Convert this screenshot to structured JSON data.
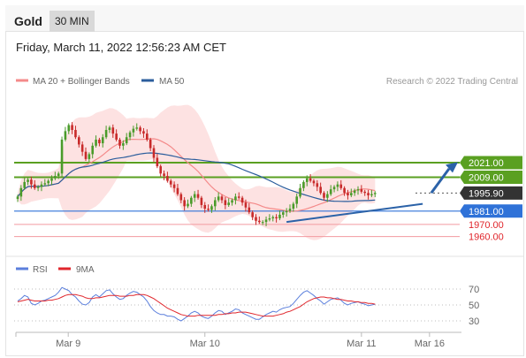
{
  "header": {
    "title": "Gold",
    "interval": "30 MIN"
  },
  "date_text": "Friday, March 11, 2022 12:56:23 AM CET",
  "colors": {
    "ma20": "#f48a8a",
    "ma50": "#2b5d9c",
    "band_fill": "#fde2e2",
    "green_level": "#5aa021",
    "blue_level": "#2f72d8",
    "red_level": "#e0262c",
    "candle_up": "#4a9b2a",
    "candle_down": "#c82a2a",
    "arrow": "#2b62a8",
    "rsi": "#5b7fdc",
    "rsi_ma": "#e0262c"
  },
  "chart_data": [
    {
      "type": "candlestick",
      "title": "",
      "legend": [
        {
          "name": "MA 20 + Bollinger Bands",
          "color": "#f48a8a"
        },
        {
          "name": "MA 50",
          "color": "#2b5d9c"
        }
      ],
      "legend_placement": "top-left",
      "credit": "Research © 2022 Trading Central",
      "ylim": [
        1950,
        2070
      ],
      "x_ticks": [
        {
          "label": "Mar 9",
          "index": 12
        },
        {
          "label": "Mar 10",
          "index": 55
        },
        {
          "label": "Mar 11",
          "index": 101
        },
        {
          "label": "Mar 16",
          "index": 121
        }
      ],
      "levels": [
        {
          "value": 2021.0,
          "label": "2021.00",
          "kind": "resistance"
        },
        {
          "value": 2009.0,
          "label": "2009.00",
          "kind": "resistance"
        },
        {
          "value": 1995.9,
          "label": "1995.90",
          "kind": "last_price"
        },
        {
          "value": 1981.0,
          "label": "1981.00",
          "kind": "pivot"
        },
        {
          "value": 1970.0,
          "label": "1970.00",
          "kind": "support"
        },
        {
          "value": 1960.0,
          "label": "1960.00",
          "kind": "support"
        }
      ],
      "close": [
        1993,
        2000,
        2005,
        2007,
        2003,
        2000,
        2001,
        2003,
        2004,
        2006,
        2008,
        2010,
        2012,
        2040,
        2047,
        2052,
        2048,
        2042,
        2036,
        2030,
        2024,
        2028,
        2035,
        2040,
        2037,
        2042,
        2048,
        2050,
        2045,
        2040,
        2035,
        2037,
        2042,
        2046,
        2049,
        2050,
        2047,
        2045,
        2040,
        2033,
        2025,
        2018,
        2012,
        2010,
        2006,
        2003,
        2000,
        1995,
        1990,
        1985,
        1987,
        1992,
        1995,
        1992,
        1986,
        1983,
        1982,
        1985,
        1990,
        1993,
        1990,
        1986,
        1988,
        1990,
        1993,
        1992,
        1988,
        1984,
        1980,
        1976,
        1973,
        1972,
        1972,
        1974,
        1975,
        1976,
        1975,
        1978,
        1980,
        1981,
        1983,
        1987,
        1993,
        2000,
        2005,
        2008,
        2006,
        2004,
        2001,
        1996,
        1992,
        1995,
        1999,
        2001,
        2003,
        2000,
        1996,
        1994,
        1996,
        1998,
        1999,
        1997,
        1996,
        1994,
        1995,
        1996
      ]
    },
    {
      "type": "line",
      "title": "",
      "legend": [
        {
          "name": "RSI",
          "color": "#5b7fdc"
        },
        {
          "name": "9MA",
          "color": "#e0262c"
        }
      ],
      "ylim": [
        20,
        80
      ],
      "y_ticks": [
        70,
        50,
        30
      ],
      "series": [
        {
          "name": "RSI",
          "values": [
            55,
            58,
            62,
            60,
            52,
            50,
            52,
            55,
            56,
            58,
            60,
            62,
            66,
            72,
            70,
            68,
            63,
            60,
            55,
            51,
            50,
            53,
            60,
            63,
            60,
            64,
            68,
            69,
            64,
            60,
            57,
            58,
            62,
            65,
            67,
            66,
            63,
            60,
            55,
            48,
            43,
            40,
            38,
            38,
            36,
            36,
            35,
            32,
            30,
            33,
            36,
            40,
            42,
            40,
            36,
            34,
            33,
            36,
            40,
            43,
            42,
            38,
            40,
            42,
            45,
            44,
            40,
            38,
            36,
            34,
            32,
            32,
            35,
            38,
            40,
            42,
            41,
            44,
            46,
            47,
            48,
            52,
            57,
            62,
            66,
            68,
            65,
            62,
            58,
            55,
            51,
            54,
            57,
            58,
            59,
            56,
            52,
            50,
            52,
            53,
            54,
            52,
            51,
            49,
            50,
            51
          ]
        },
        {
          "name": "9MA",
          "values": [
            54,
            55,
            56,
            57,
            56,
            55,
            55,
            55,
            55,
            56,
            56,
            57,
            58,
            60,
            62,
            63,
            63,
            63,
            62,
            61,
            59,
            58,
            58,
            59,
            59,
            60,
            61,
            62,
            62,
            62,
            61,
            61,
            61,
            62,
            62,
            63,
            63,
            63,
            62,
            60,
            58,
            55,
            52,
            49,
            46,
            44,
            42,
            40,
            38,
            37,
            36,
            36,
            36,
            37,
            37,
            37,
            37,
            37,
            37,
            38,
            38,
            39,
            39,
            40,
            40,
            41,
            41,
            41,
            40,
            39,
            38,
            37,
            36,
            36,
            36,
            36,
            37,
            38,
            39,
            41,
            42,
            44,
            46,
            48,
            51,
            54,
            56,
            58,
            59,
            60,
            60,
            59,
            59,
            58,
            57,
            57,
            56,
            55,
            55,
            54,
            54,
            53,
            53,
            52,
            52,
            51
          ]
        }
      ]
    }
  ]
}
